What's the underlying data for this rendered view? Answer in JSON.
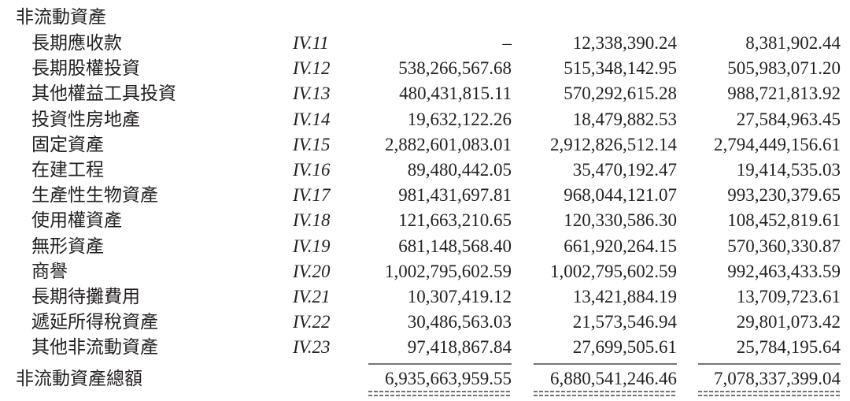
{
  "section_title": "非流動資產",
  "rows": [
    [
      "長期應收款",
      "IV.11",
      "–",
      "12,338,390.24",
      "8,381,902.44"
    ],
    [
      "長期股權投資",
      "IV.12",
      "538,266,567.68",
      "515,348,142.95",
      "505,983,071.20"
    ],
    [
      "其他權益工具投資",
      "IV.13",
      "480,431,815.11",
      "570,292,615.28",
      "988,721,813.92"
    ],
    [
      "投資性房地產",
      "IV.14",
      "19,632,122.26",
      "18,479,882.53",
      "27,584,963.45"
    ],
    [
      "固定資產",
      "IV.15",
      "2,882,601,083.01",
      "2,912,826,512.14",
      "2,794,449,156.61"
    ],
    [
      "在建工程",
      "IV.16",
      "89,480,442.05",
      "35,470,192.47",
      "19,414,535.03"
    ],
    [
      "生產性生物資產",
      "IV.17",
      "981,431,697.81",
      "968,044,121.07",
      "993,230,379.65"
    ],
    [
      "使用權資產",
      "IV.18",
      "121,663,210.65",
      "120,330,586.30",
      "108,452,819.61"
    ],
    [
      "無形資產",
      "IV.19",
      "681,148,568.40",
      "661,920,264.15",
      "570,360,330.87"
    ],
    [
      "商譽",
      "IV.20",
      "1,002,795,602.59",
      "1,002,795,602.59",
      "992,463,433.59"
    ],
    [
      "長期待攤費用",
      "IV.21",
      "10,307,419.12",
      "13,421,884.19",
      "13,709,723.61"
    ],
    [
      "遞延所得稅資產",
      "IV.22",
      "30,486,563.03",
      "21,573,546.94",
      "29,801,073.42"
    ],
    [
      "其他非流動資產",
      "IV.23",
      "97,418,867.84",
      "27,699,505.61",
      "25,784,195.64"
    ]
  ],
  "total": {
    "label": "非流動資產總額",
    "values": [
      "6,935,663,959.55",
      "6,880,541,246.46",
      "7,078,337,399.04"
    ]
  }
}
